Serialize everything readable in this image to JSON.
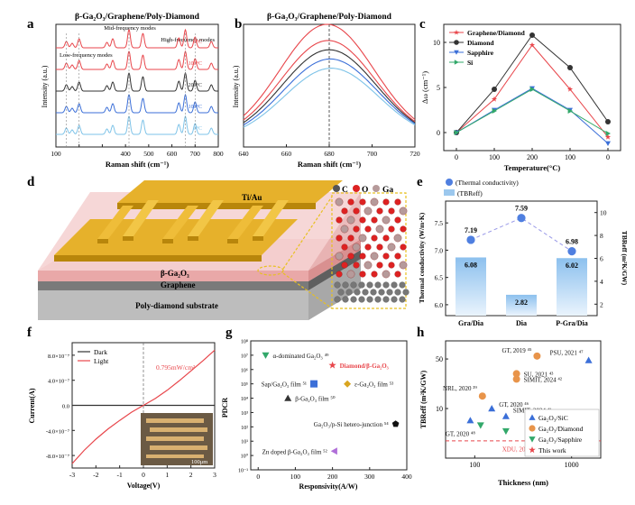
{
  "figure": {
    "panels": [
      "a",
      "b",
      "c",
      "d",
      "e",
      "f",
      "g",
      "h"
    ]
  },
  "colors": {
    "red": "#e8464b",
    "dark": "#333333",
    "blue": "#3b6fd8",
    "lightblue": "#7ec3e8",
    "green": "#32a86a",
    "orange": "#e8944a",
    "gold": "#d9a520",
    "bar": "#9cc8ee",
    "point": "#4f7fe0"
  },
  "chart_data": [
    {
      "panel": "a",
      "type": "line",
      "title": "β-Ga₂O₃/Graphene/Poly-Diamond",
      "xlabel": "Raman shift (cm⁻¹)",
      "ylabel": "Intensity (a.u.)",
      "xlim": [
        100,
        800
      ],
      "xticks": [
        100,
        200,
        300,
        400,
        500,
        600,
        700,
        800
      ],
      "xtick_labels": [
        "100",
        "",
        "",
        "400",
        "500",
        "600",
        "700",
        "800"
      ],
      "peaks": [
        145,
        170,
        200,
        320,
        345,
        415,
        475,
        630,
        658,
        700,
        770
      ],
      "peak_heights": [
        0.35,
        0.25,
        0.5,
        0.3,
        0.5,
        1.0,
        0.8,
        0.55,
        1.0,
        0.6,
        0.35
      ],
      "series": [
        {
          "name": "0°C",
          "color": "#e8464b",
          "offset": 4
        },
        {
          "name": "100°C",
          "color": "#e8464b",
          "offset": 3
        },
        {
          "name": "200°C",
          "color": "#333333",
          "offset": 2
        },
        {
          "name": "100°C",
          "color": "#3b6fd8",
          "offset": 1
        },
        {
          "name": "0°C",
          "color": "#7ec3e8",
          "offset": 0
        }
      ],
      "annotations": [
        "Low-frequency modes",
        "Mid-frequency modes",
        "High-frequency modes"
      ]
    },
    {
      "panel": "b",
      "type": "line",
      "title": "β-Ga₂O₃/Graphene/Poly-Diamond",
      "xlabel": "Raman shift (cm⁻¹)",
      "ylabel": "Intensity (a.u.)",
      "xlim": [
        640,
        720
      ],
      "xticks": [
        640,
        660,
        680,
        700,
        720
      ],
      "reference_line": 680,
      "series": [
        {
          "color": "#e8464b",
          "center": 679,
          "amp": 1.0,
          "width": 22
        },
        {
          "color": "#e8464b",
          "center": 679.5,
          "amp": 0.86,
          "width": 22
        },
        {
          "color": "#333333",
          "center": 680,
          "amp": 0.78,
          "width": 22
        },
        {
          "color": "#3b6fd8",
          "center": 680.5,
          "amp": 0.7,
          "width": 22
        },
        {
          "color": "#7ec3e8",
          "center": 681,
          "amp": 0.62,
          "width": 22
        }
      ]
    },
    {
      "panel": "c",
      "type": "line",
      "xlabel": "Temperature(°C)",
      "ylabel": "Δω (cm⁻¹)",
      "ylim": [
        -2,
        12
      ],
      "yticks": [
        0,
        5,
        10
      ],
      "categories": [
        "0",
        "100",
        "200",
        "100",
        "0"
      ],
      "series": [
        {
          "name": "Graphene/Diamond",
          "color": "#e8464b",
          "marker": "star",
          "values": [
            0,
            3.7,
            9.7,
            4.8,
            -0.5
          ]
        },
        {
          "name": "Diamond",
          "color": "#333333",
          "marker": "circle",
          "values": [
            0,
            4.8,
            10.8,
            7.2,
            1.2
          ]
        },
        {
          "name": "Sapphire",
          "color": "#3b6fd8",
          "marker": "triangle-down",
          "values": [
            0,
            2.5,
            4.9,
            2.5,
            -1.2
          ]
        },
        {
          "name": "Si",
          "color": "#32a86a",
          "marker": "triangle-right",
          "values": [
            0,
            2.4,
            4.8,
            2.4,
            -0.1
          ]
        }
      ]
    },
    {
      "panel": "d",
      "type": "diagram",
      "labels": {
        "electrode": "Ti/Au",
        "layer1": "β-Ga₂O₃",
        "layer2": "Graphene",
        "substrate": "Poly-diamond substrate",
        "legend_c": "C",
        "legend_o": "O",
        "legend_ga": "Ga"
      }
    },
    {
      "panel": "e",
      "type": "bar",
      "categories": [
        "Gra/Dia",
        "Dia",
        "P-Gra/Dia"
      ],
      "series": [
        {
          "name": "(Thermal conductivity)",
          "axis": "left",
          "values": [
            7.19,
            7.59,
            6.98
          ],
          "labels": [
            "7.19",
            "7.59",
            "6.98"
          ]
        },
        {
          "name": "(TBReff)",
          "axis": "right",
          "values": [
            6.08,
            2.82,
            6.02
          ],
          "labels": [
            "6.08",
            "2.82",
            "6.02"
          ]
        }
      ],
      "ylabel_left": "Thermal conductivity (W/m·K)",
      "ylabel_right": "TBReff (m²K/GW)",
      "ylim_left": [
        5.8,
        7.9
      ],
      "yticks_left": [
        6.0,
        6.5,
        7.0,
        7.5
      ],
      "ylim_right": [
        1,
        11
      ],
      "yticks_right": [
        2,
        4,
        6,
        8,
        10
      ]
    },
    {
      "panel": "f",
      "type": "line",
      "xlabel": "Voltage(V)",
      "ylabel": "Current(A)",
      "xlim": [
        -3,
        3
      ],
      "xticks": [
        -3,
        -2,
        -1,
        0,
        1,
        2,
        3
      ],
      "ylim": [
        -1e-06,
        1e-06
      ],
      "yticks": [
        -8e-07,
        -4e-07,
        0,
        4e-07,
        8e-07
      ],
      "ytick_labels": [
        "-8.0×10⁻⁷",
        "-4.0×10⁻⁷",
        "0.0",
        "4.0×10⁻⁷",
        "8.0×10⁻⁷"
      ],
      "series": [
        {
          "name": "Dark",
          "color": "#333333",
          "x": [
            -3,
            -2,
            -1,
            0,
            1,
            2,
            3
          ],
          "y": [
            0,
            0,
            0,
            0,
            0,
            0,
            0
          ]
        },
        {
          "name": "Light",
          "color": "#e8464b",
          "x": [
            -3,
            -2.5,
            -2,
            -1.5,
            -1,
            -0.5,
            0,
            0.5,
            1,
            1.5,
            2,
            2.5,
            3
          ],
          "y": [
            -9.3e-07,
            -7.2e-07,
            -5.4e-07,
            -3.8e-07,
            -2.4e-07,
            -1.1e-07,
            0,
            1.1e-07,
            2.4e-07,
            3.9e-07,
            5.5e-07,
            7.1e-07,
            8.8e-07
          ]
        }
      ],
      "annotation": "0.795mW/cm²",
      "scale_label": "100μm"
    },
    {
      "panel": "g",
      "type": "scatter",
      "xlabel": "Responsivity(A/W)",
      "ylabel": "PDCR",
      "xlim": [
        -20,
        400
      ],
      "xticks": [
        0,
        100,
        200,
        300,
        400
      ],
      "ylog": true,
      "ylim_exp": [
        -1,
        8
      ],
      "ytick_labels": [
        "10⁻¹",
        "10⁰",
        "10¹",
        "10²",
        "10³",
        "10⁴",
        "10⁵",
        "10⁶",
        "10⁷",
        "10⁸"
      ],
      "points": [
        {
          "label": "α-dominated Ga₂O₃ ⁴⁹",
          "x": 20,
          "y_exp": 7.0,
          "marker": "triangle-down",
          "color": "#32a86a"
        },
        {
          "label": "Diamond/β-Ga₂O₃",
          "x": 200,
          "y_exp": 6.3,
          "marker": "star",
          "color": "#e8464b"
        },
        {
          "label": "Sap/Ga₂O₃ film ⁵¹",
          "x": 150,
          "y_exp": 5.0,
          "marker": "square",
          "color": "#3b6fd8"
        },
        {
          "label": "ε-Ga₂O₃ film ⁵³",
          "x": 240,
          "y_exp": 5.0,
          "marker": "diamond",
          "color": "#d9a520"
        },
        {
          "label": "β-Ga₂O₃ film ⁵⁰",
          "x": 80,
          "y_exp": 4.0,
          "marker": "triangle",
          "color": "#333333"
        },
        {
          "label": "Ga₂O₃/p-Si hetero-junction ⁵⁴",
          "x": 370,
          "y_exp": 2.2,
          "marker": "pentagon",
          "color": "#111111"
        },
        {
          "label": "Zn doped β-Ga₂O₃ film ⁵²",
          "x": 205,
          "y_exp": 0.3,
          "marker": "triangle-left",
          "color": "#b06fd8"
        }
      ]
    },
    {
      "panel": "h",
      "type": "scatter",
      "xlabel": "Thickness (nm)",
      "ylabel": "TBReff (m²K/GW)",
      "xlog": true,
      "xlim": [
        50,
        2000
      ],
      "xticks": [
        100,
        1000
      ],
      "ylog": true,
      "ylim": [
        2,
        90
      ],
      "yticks": [
        10,
        50
      ],
      "reference_line": 3.5,
      "points": [
        {
          "label": "GT, 2019 ⁴⁵",
          "x": 440,
          "y": 55,
          "group": "Ga₂O₃/Diamond"
        },
        {
          "label": "PSU, 2021 ⁴⁷",
          "x": 1500,
          "y": 48,
          "group": "Ga₂O₃/SiC"
        },
        {
          "label": "SU, 2021 ⁴³",
          "x": 270,
          "y": 31,
          "group": "Ga₂O₃/Diamond"
        },
        {
          "label": "SIMIT, 2024 ⁴²",
          "x": 270,
          "y": 26,
          "group": "Ga₂O₃/Diamond"
        },
        {
          "label": "NRL, 2020 ³⁹",
          "x": 120,
          "y": 15,
          "group": "Ga₂O₃/Diamond"
        },
        {
          "label": "GT, 2020 ⁴⁶",
          "x": 150,
          "y": 10,
          "group": "Ga₂O₃/SiC"
        },
        {
          "label": "SIMIT, 2024 ⁴¹",
          "x": 210,
          "y": 7.8,
          "group": "Ga₂O₃/SiC"
        },
        {
          "label": "",
          "x": 90,
          "y": 6.8,
          "group": "Ga₂O₃/SiC"
        },
        {
          "label": "GT, 2020 ⁴⁸",
          "x": 115,
          "y": 5.8,
          "group": "Ga₂O₃/Sapphire"
        },
        {
          "label": "",
          "x": 210,
          "y": 4.8,
          "group": "Ga₂O₃/Sapphire"
        },
        {
          "label": "",
          "x": 420,
          "y": 5.8,
          "group": "This work"
        },
        {
          "label": "XDU, 2025",
          "x": 440,
          "y": 2.9,
          "group": "This work"
        }
      ],
      "legend": [
        {
          "name": "Ga₂O₃/SiC",
          "marker": "triangle",
          "color": "#3b6fd8"
        },
        {
          "name": "Ga₂O₃/Diamond",
          "marker": "circle",
          "color": "#e8944a"
        },
        {
          "name": "Ga₂O₃/Sapphire",
          "marker": "triangle-down",
          "color": "#32a86a"
        },
        {
          "name": "This work",
          "marker": "star",
          "color": "#e8464b"
        }
      ]
    }
  ]
}
